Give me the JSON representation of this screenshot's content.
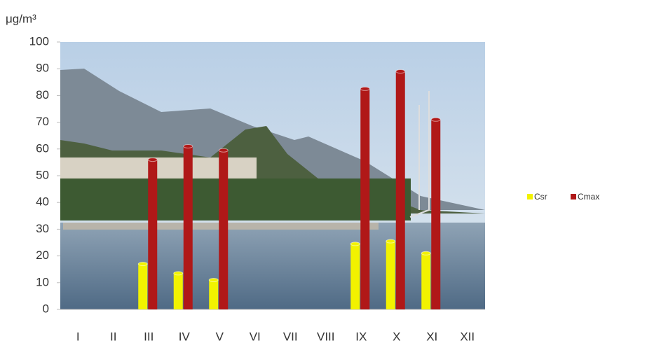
{
  "chart_data": {
    "type": "bar",
    "y_label": "μg/m³",
    "categories": [
      "I",
      "II",
      "III",
      "IV",
      "V",
      "VI",
      "VII",
      "VIII",
      "IX",
      "X",
      "XI",
      "XII"
    ],
    "series": [
      {
        "name": "Csr",
        "color": "#f2f200",
        "values": [
          null,
          null,
          17,
          13.5,
          11,
          null,
          null,
          null,
          24.5,
          25.5,
          21,
          null
        ]
      },
      {
        "name": "Cmax",
        "color": "#b01818",
        "values": [
          null,
          null,
          56,
          61,
          59.5,
          null,
          null,
          null,
          82.5,
          89,
          71,
          null
        ]
      }
    ],
    "ylim": [
      0,
      100
    ],
    "yticks": [
      0,
      10,
      20,
      30,
      40,
      50,
      60,
      70,
      80,
      90,
      100
    ],
    "legend": "right"
  }
}
